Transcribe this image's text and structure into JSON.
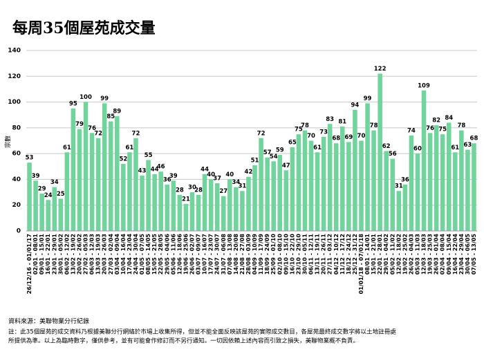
{
  "chart_data": {
    "type": "bar",
    "title": "每周35個屋苑成交量",
    "y_label": "宗數",
    "categories": [
      "26/12/16 - 01/01/17",
      "02/01 - 08/01",
      "09/01 - 15/01",
      "16/01 - 22/01",
      "23/01 - 29/01",
      "30/01 - 05/02",
      "06/02 - 12/02",
      "13/02 - 19/02",
      "20/02 - 26/02",
      "27/02 - 05/03",
      "06/03 - 12/03",
      "13/03 - 19/03",
      "20/03 - 26/03",
      "27/03 - 02/04",
      "03/04 - 09/04",
      "10/04 - 16/04",
      "17/04 - 23/04",
      "24/04 - 30/04",
      "01/05 - 07/05",
      "08/05 - 14/05",
      "15/05 - 21/05",
      "22/05 - 28/05",
      "29/05 - 04/06",
      "05/06 - 11/06",
      "12/06 - 18/06",
      "19/06 - 25/06",
      "26/06 - 02/07",
      "03/07 - 09/07",
      "10/07 - 16/07",
      "17/07 - 23/07",
      "24/07 - 30/07",
      "31/07 - 06/08",
      "07/08 - 13/08",
      "14/08 - 20/08",
      "21/08 - 27/08",
      "28/08 - 03/09",
      "04/09 - 10/09",
      "11/09 - 17/09",
      "18/09 - 24/09",
      "25/09 - 01/10",
      "02/10 - 08/10",
      "09/10 - 15/10",
      "16/10 - 22/10",
      "23/10 - 29/10",
      "30/10 - 05/11",
      "06/11 - 12/11",
      "13/11 - 19/11",
      "20/11 - 26/11",
      "27/11 - 03/12",
      "04/12 - 10/12",
      "11/12 - 17/12",
      "18/12 - 24/12",
      "25/12 - 31/12",
      "01/01/18 - 07/01/18",
      "08/01 - 14/01",
      "15/01 - 21/01",
      "22/01 - 28/01",
      "29/01 - 04/02",
      "05/02 - 11/02",
      "12/02 - 18/02",
      "19/02 - 25/02",
      "26/02 - 04/03",
      "05/03 - 11/03",
      "12/03 - 18/03",
      "19/03 - 25/03",
      "26/03 - 01/04",
      "02/04 - 08/04",
      "09/04 - 15/04",
      "16/04 - 22/04",
      "23/04 - 29/04",
      "30/04 - 06/05",
      "07/05 - 13/05"
    ],
    "values": [
      53,
      39,
      29,
      24,
      34,
      25,
      61,
      95,
      79,
      100,
      76,
      72,
      99,
      85,
      89,
      52,
      61,
      72,
      43,
      55,
      44,
      46,
      36,
      39,
      28,
      21,
      30,
      28,
      44,
      40,
      37,
      27,
      40,
      34,
      31,
      42,
      51,
      72,
      57,
      54,
      59,
      47,
      65,
      75,
      78,
      70,
      61,
      73,
      83,
      68,
      81,
      69,
      94,
      70,
      99,
      78,
      122,
      62,
      56,
      31,
      36,
      74,
      60,
      109,
      76,
      82,
      75,
      84,
      61,
      78,
      63,
      68
    ],
    "color": "#70d49c",
    "ylim": [
      0,
      140
    ],
    "yticks": [
      0,
      20,
      40,
      60,
      80,
      100,
      120,
      140
    ],
    "grid": true,
    "source": "資料來源：美聯物業分行紀錄",
    "notes": [
      "註：此35個屋苑的成交資料乃根據美聯分行網絡於市場上收集所得，但並不能全面反映該屋苑的實際成交數目，各屋苑最終成交數字將以土地註冊處",
      "所提供為準。以上為臨時數字，僅供參考，並有可能會作修訂而不另行通知。一切因依賴上述內容而引致之損失，美聯物業概不負責。"
    ]
  }
}
